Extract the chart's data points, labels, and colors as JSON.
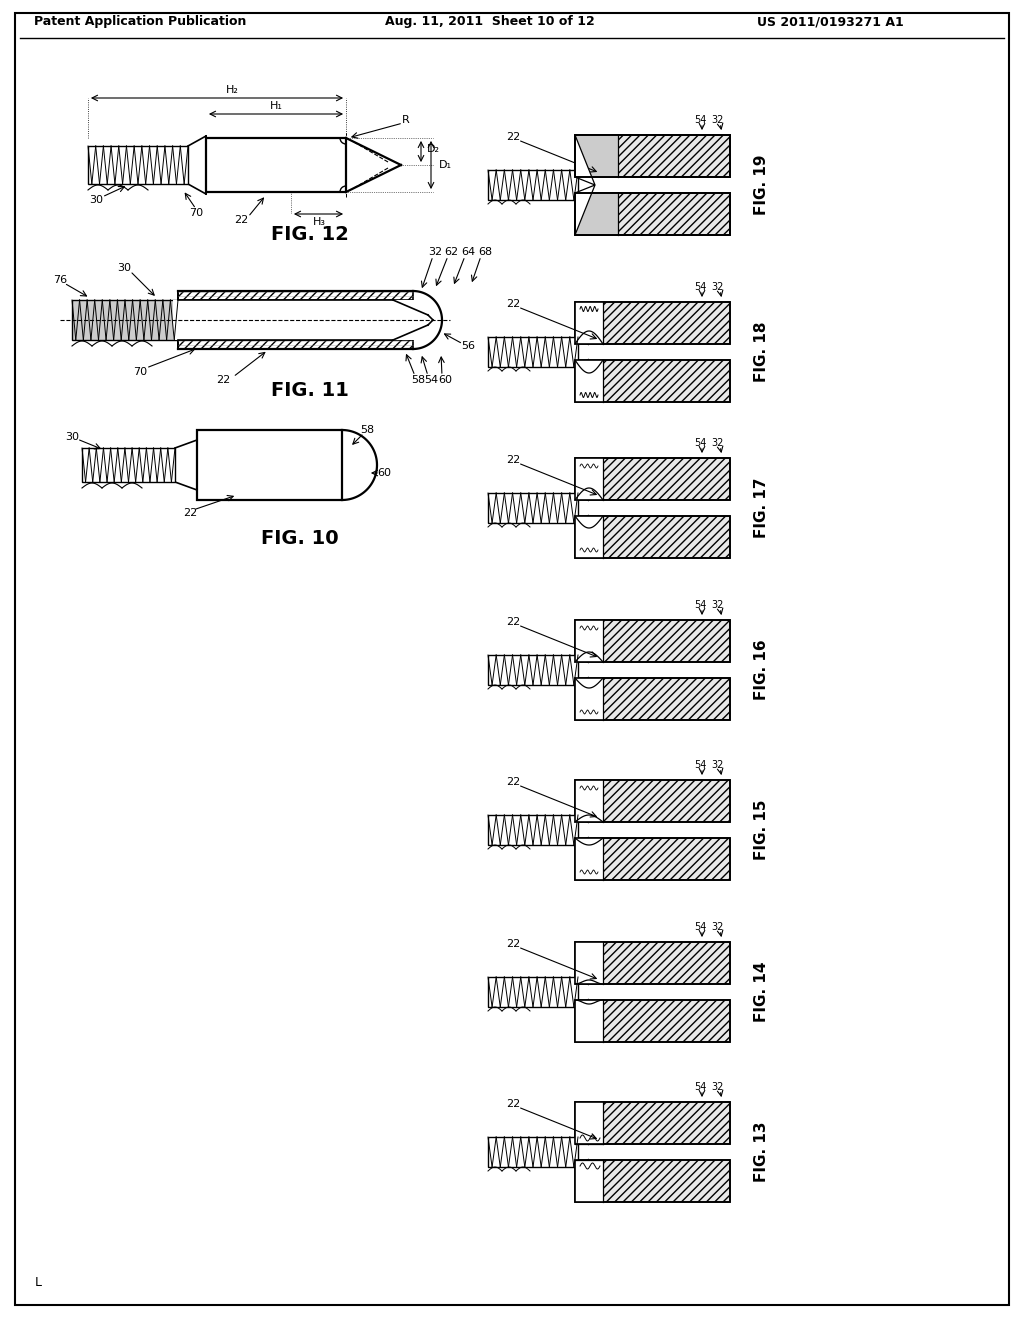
{
  "header_left": "Patent Application Publication",
  "header_center": "Aug. 11, 2011  Sheet 10 of 12",
  "header_right": "US 2011/0193271 A1",
  "bg": "#ffffff",
  "lc": "#000000",
  "footer": "L"
}
